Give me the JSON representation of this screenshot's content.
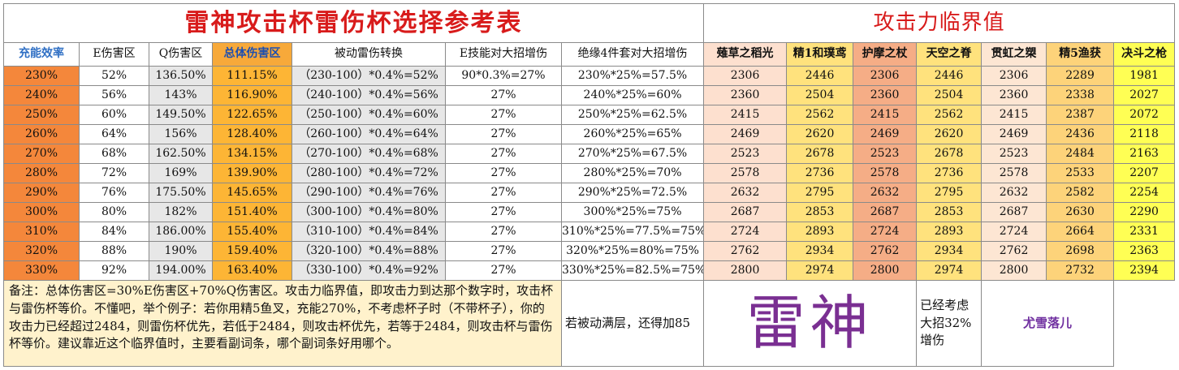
{
  "title": "雷神攻击杯雷伤杯选择参考表",
  "right_title": "攻击力临界值",
  "headers": [
    "充能效率",
    "E伤害区",
    "Q伤害区",
    "总体伤害区",
    "被动雷伤转换",
    "E技能对大招增伤",
    "绝缘4件套对大招增伤"
  ],
  "weapons": [
    "薙草之稻光",
    "精1和璞鸢",
    "护摩之杖",
    "天空之脊",
    "贯虹之槊",
    "精5渔获",
    "决斗之枪"
  ],
  "rows": [
    [
      "230%",
      "52%",
      "136.50%",
      "111.15%",
      "（230-100）*0.4%=52%",
      "90*0.3%=27%",
      "230%*25%=57.5%",
      "2306",
      "2446",
      "2306",
      "2446",
      "2306",
      "2289",
      "1981"
    ],
    [
      "240%",
      "56%",
      "143%",
      "116.90%",
      "（240-100）*0.4%=56%",
      "27%",
      "240%*25%=60%",
      "2360",
      "2504",
      "2360",
      "2504",
      "2360",
      "2338",
      "2027"
    ],
    [
      "250%",
      "60%",
      "149.50%",
      "122.65%",
      "（250-100）*0.4%=60%",
      "27%",
      "250%*25%=62.5%",
      "2415",
      "2562",
      "2415",
      "2562",
      "2415",
      "2387",
      "2072"
    ],
    [
      "260%",
      "64%",
      "156%",
      "128.40%",
      "（260-100）*0.4%=64%",
      "27%",
      "260%*25%=65%",
      "2469",
      "2620",
      "2469",
      "2620",
      "2469",
      "2436",
      "2118"
    ],
    [
      "270%",
      "68%",
      "162.50%",
      "134.15%",
      "（270-100）*0.4%=68%",
      "27%",
      "270%*25%=67.5%",
      "2523",
      "2678",
      "2523",
      "2678",
      "2523",
      "2484",
      "2163"
    ],
    [
      "280%",
      "72%",
      "169%",
      "139.90%",
      "（280-100）*0.4%=72%",
      "27%",
      "280%*25%=70%",
      "2578",
      "2736",
      "2578",
      "2736",
      "2578",
      "2533",
      "2207"
    ],
    [
      "290%",
      "76%",
      "175.50%",
      "145.65%",
      "（290-100）*0.4%=76%",
      "27%",
      "290%*25%=72.5%",
      "2632",
      "2795",
      "2632",
      "2795",
      "2632",
      "2582",
      "2254"
    ],
    [
      "300%",
      "80%",
      "182%",
      "151.40%",
      "（300-100）*0.4%=80%",
      "27%",
      "300%*25%=75%",
      "2687",
      "2853",
      "2687",
      "2853",
      "2687",
      "2630",
      "2290"
    ],
    [
      "310%",
      "84%",
      "186.00%",
      "155.40%",
      "（310-100）*0.4%=84%",
      "27%",
      "310%*25%=77.5%=75%",
      "2724",
      "2893",
      "2724",
      "2893",
      "2724",
      "2664",
      "2331"
    ],
    [
      "320%",
      "88%",
      "190%",
      "159.40%",
      "（320-100）*0.4%=88%",
      "27%",
      "320%*25%=80%=75%",
      "2762",
      "2934",
      "2762",
      "2934",
      "2762",
      "2698",
      "2363"
    ],
    [
      "330%",
      "92%",
      "194.00%",
      "163.40%",
      "（330-100）*0.4%=92%",
      "27%",
      "330%*25%=82.5%=75%",
      "2800",
      "2974",
      "2800",
      "2974",
      "2800",
      "2732",
      "2394"
    ]
  ],
  "note": "备注：总体伤害区=30%E伤害区+70%Q伤害区。攻击力临界值，即攻击力到达那个数字时，攻击杯与雷伤杯等价。不懂吧，举个例子：若你用精5鱼叉，充能270%，不考虑杯子时（不带杯子），你的攻击力已经超过2484，则雷伤杯优先，若低于2484，则攻击杯优先，若等于2484，则攻击杯与雷伤杯等价。建议靠近这个临界值时，主要看副词条，哪个副词条好用哪个。",
  "passive_note": "若被动满层，还得加85",
  "big_name": "雷神",
  "burst_note": "已经考虑大招32%增伤",
  "author": "尤雪落儿",
  "colors": {
    "title_red": "#d81b1b",
    "efficiency_orange": "#f4873b",
    "total_orange": "#fdb535",
    "grey": "#e7e7e7",
    "header_blue": "#2f6fc4",
    "purple": "#7a2f92",
    "note_bg": "#fff2cc"
  }
}
